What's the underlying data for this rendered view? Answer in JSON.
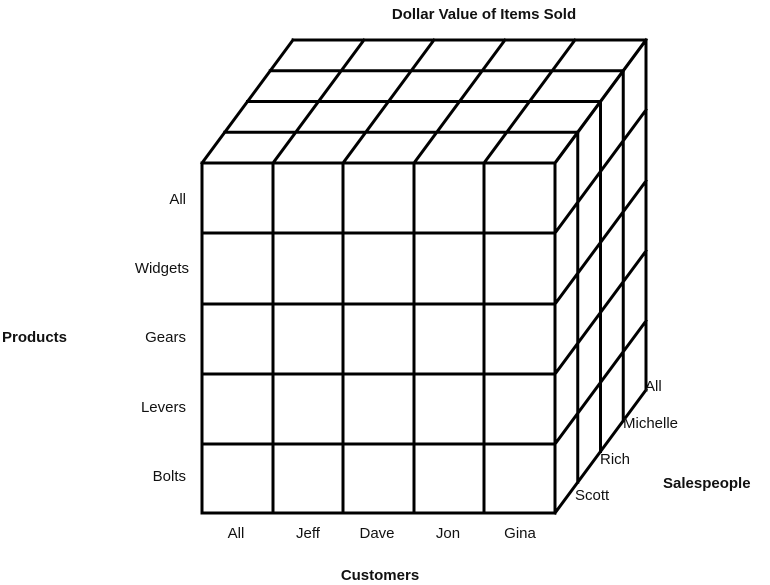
{
  "title": "Dollar Value of Items Sold",
  "dimensions": {
    "products": {
      "title": "Products",
      "items": [
        "All",
        "Widgets",
        "Gears",
        "Levers",
        "Bolts"
      ]
    },
    "customers": {
      "title": "Customers",
      "items": [
        "All",
        "Jeff",
        "Dave",
        "Jon",
        "Gina"
      ]
    },
    "salespeople": {
      "title": "Salespeople",
      "items": [
        "Scott",
        "Rich",
        "Michelle",
        "All"
      ]
    }
  },
  "colors": {
    "line": "#000000",
    "text": "#111111",
    "background": "#ffffff"
  }
}
